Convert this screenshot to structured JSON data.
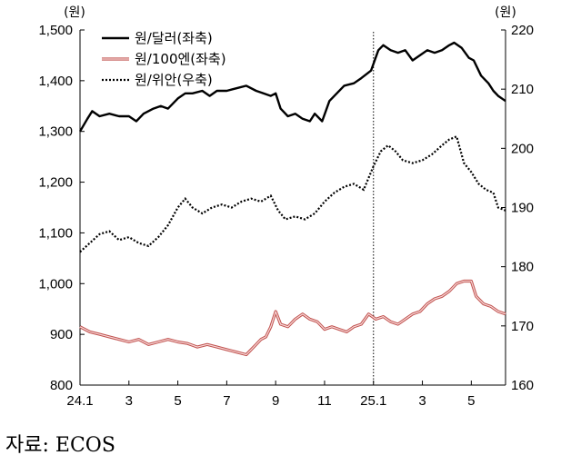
{
  "chart_data": {
    "type": "line",
    "left_axis": {
      "unit": "(원)",
      "ticks": [
        "1,500",
        "1,400",
        "1,300",
        "1,200",
        "1,100",
        "1,000",
        "900",
        "800"
      ],
      "ylim": [
        800,
        1500
      ]
    },
    "right_axis": {
      "unit": "(원)",
      "ticks": [
        "220",
        "210",
        "200",
        "190",
        "180",
        "170",
        "160"
      ],
      "ylim": [
        160,
        220
      ]
    },
    "x_axis": {
      "ticks": [
        "24.1",
        "3",
        "5",
        "7",
        "9",
        "11",
        "25.1",
        "3",
        "5"
      ],
      "tick_months": [
        0,
        2,
        4,
        6,
        8,
        10,
        12,
        14,
        16
      ],
      "range_months": [
        0,
        17.4
      ],
      "reference_line_month": 12
    },
    "legend_placement": "top-left",
    "series": [
      {
        "name": "원/달러(좌축)",
        "axis": "left",
        "color": "#000000",
        "style": "solid",
        "points": [
          [
            0,
            1300
          ],
          [
            0.3,
            1325
          ],
          [
            0.5,
            1340
          ],
          [
            0.8,
            1330
          ],
          [
            1.2,
            1335
          ],
          [
            1.6,
            1330
          ],
          [
            2.0,
            1330
          ],
          [
            2.3,
            1320
          ],
          [
            2.6,
            1335
          ],
          [
            3.0,
            1345
          ],
          [
            3.3,
            1350
          ],
          [
            3.6,
            1345
          ],
          [
            4.0,
            1365
          ],
          [
            4.3,
            1375
          ],
          [
            4.6,
            1375
          ],
          [
            5.0,
            1380
          ],
          [
            5.3,
            1370
          ],
          [
            5.6,
            1380
          ],
          [
            6.0,
            1380
          ],
          [
            6.4,
            1385
          ],
          [
            6.8,
            1390
          ],
          [
            7.2,
            1380
          ],
          [
            7.5,
            1375
          ],
          [
            7.8,
            1370
          ],
          [
            8.0,
            1375
          ],
          [
            8.2,
            1345
          ],
          [
            8.5,
            1330
          ],
          [
            8.8,
            1335
          ],
          [
            9.1,
            1325
          ],
          [
            9.4,
            1320
          ],
          [
            9.6,
            1335
          ],
          [
            9.9,
            1320
          ],
          [
            10.2,
            1360
          ],
          [
            10.5,
            1375
          ],
          [
            10.8,
            1390
          ],
          [
            11.2,
            1395
          ],
          [
            11.5,
            1405
          ],
          [
            11.9,
            1420
          ],
          [
            12.2,
            1460
          ],
          [
            12.4,
            1470
          ],
          [
            12.7,
            1460
          ],
          [
            13.0,
            1455
          ],
          [
            13.3,
            1460
          ],
          [
            13.6,
            1440
          ],
          [
            13.9,
            1450
          ],
          [
            14.2,
            1460
          ],
          [
            14.5,
            1455
          ],
          [
            14.8,
            1460
          ],
          [
            15.1,
            1470
          ],
          [
            15.3,
            1475
          ],
          [
            15.6,
            1465
          ],
          [
            15.9,
            1445
          ],
          [
            16.1,
            1440
          ],
          [
            16.4,
            1410
          ],
          [
            16.7,
            1395
          ],
          [
            16.9,
            1380
          ],
          [
            17.1,
            1370
          ],
          [
            17.4,
            1360
          ]
        ]
      },
      {
        "name": "원/100엔(좌축)",
        "axis": "left",
        "color": "#c0504d",
        "style": "double",
        "points": [
          [
            0,
            915
          ],
          [
            0.4,
            905
          ],
          [
            0.8,
            900
          ],
          [
            1.2,
            895
          ],
          [
            1.6,
            890
          ],
          [
            2.0,
            885
          ],
          [
            2.4,
            890
          ],
          [
            2.8,
            880
          ],
          [
            3.2,
            885
          ],
          [
            3.6,
            890
          ],
          [
            4.0,
            885
          ],
          [
            4.4,
            882
          ],
          [
            4.8,
            875
          ],
          [
            5.2,
            880
          ],
          [
            5.6,
            875
          ],
          [
            6.0,
            870
          ],
          [
            6.4,
            865
          ],
          [
            6.8,
            860
          ],
          [
            7.0,
            870
          ],
          [
            7.2,
            880
          ],
          [
            7.4,
            890
          ],
          [
            7.6,
            895
          ],
          [
            7.8,
            915
          ],
          [
            8.0,
            945
          ],
          [
            8.2,
            920
          ],
          [
            8.5,
            915
          ],
          [
            8.8,
            930
          ],
          [
            9.1,
            940
          ],
          [
            9.4,
            930
          ],
          [
            9.7,
            925
          ],
          [
            10.0,
            910
          ],
          [
            10.3,
            915
          ],
          [
            10.6,
            910
          ],
          [
            10.9,
            905
          ],
          [
            11.2,
            915
          ],
          [
            11.5,
            920
          ],
          [
            11.8,
            940
          ],
          [
            12.1,
            930
          ],
          [
            12.4,
            935
          ],
          [
            12.7,
            925
          ],
          [
            13.0,
            920
          ],
          [
            13.3,
            930
          ],
          [
            13.6,
            940
          ],
          [
            13.9,
            945
          ],
          [
            14.2,
            960
          ],
          [
            14.5,
            970
          ],
          [
            14.8,
            975
          ],
          [
            15.1,
            985
          ],
          [
            15.4,
            1000
          ],
          [
            15.7,
            1005
          ],
          [
            16.0,
            1005
          ],
          [
            16.2,
            975
          ],
          [
            16.5,
            960
          ],
          [
            16.8,
            955
          ],
          [
            17.1,
            945
          ],
          [
            17.4,
            940
          ]
        ]
      },
      {
        "name": "원/위안(우축)",
        "axis": "right",
        "color": "#000000",
        "style": "dotted",
        "points": [
          [
            0,
            182.5
          ],
          [
            0.4,
            184.0
          ],
          [
            0.8,
            185.5
          ],
          [
            1.2,
            186.0
          ],
          [
            1.6,
            184.5
          ],
          [
            2.0,
            185.0
          ],
          [
            2.4,
            184.0
          ],
          [
            2.8,
            183.5
          ],
          [
            3.2,
            185.0
          ],
          [
            3.6,
            187.0
          ],
          [
            4.0,
            190.0
          ],
          [
            4.3,
            191.5
          ],
          [
            4.6,
            190.0
          ],
          [
            5.0,
            189.0
          ],
          [
            5.4,
            190.0
          ],
          [
            5.8,
            190.5
          ],
          [
            6.2,
            190.0
          ],
          [
            6.6,
            191.0
          ],
          [
            7.0,
            191.5
          ],
          [
            7.4,
            191.0
          ],
          [
            7.8,
            192.0
          ],
          [
            8.1,
            189.5
          ],
          [
            8.4,
            188.0
          ],
          [
            8.8,
            188.5
          ],
          [
            9.2,
            188.0
          ],
          [
            9.6,
            189.0
          ],
          [
            10.0,
            191.0
          ],
          [
            10.4,
            192.5
          ],
          [
            10.8,
            193.5
          ],
          [
            11.2,
            194.0
          ],
          [
            11.6,
            193.0
          ],
          [
            12.0,
            197.0
          ],
          [
            12.3,
            199.5
          ],
          [
            12.6,
            200.5
          ],
          [
            12.9,
            199.5
          ],
          [
            13.2,
            198.0
          ],
          [
            13.6,
            197.5
          ],
          [
            14.0,
            198.0
          ],
          [
            14.4,
            199.0
          ],
          [
            14.8,
            200.5
          ],
          [
            15.1,
            201.5
          ],
          [
            15.4,
            202.0
          ],
          [
            15.7,
            197.5
          ],
          [
            16.0,
            196.0
          ],
          [
            16.3,
            194.0
          ],
          [
            16.6,
            193.0
          ],
          [
            16.9,
            192.5
          ],
          [
            17.1,
            190.0
          ],
          [
            17.4,
            189.5
          ]
        ]
      }
    ]
  },
  "source": "자료: ECOS"
}
